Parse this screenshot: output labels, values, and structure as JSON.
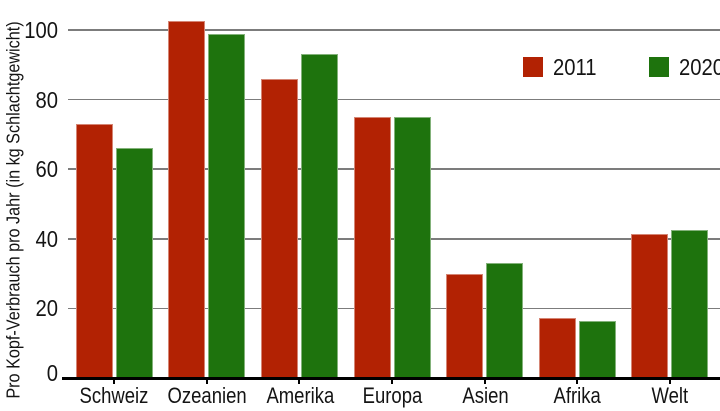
{
  "chart_data": {
    "type": "bar",
    "title": "",
    "xlabel": "",
    "ylabel": "Pro Kopf-Verbrauch pro Jahr (in kg Schlachtgewicht)",
    "categories": [
      "Schweiz",
      "Ozeanien",
      "Amerika",
      "Europa",
      "Asien",
      "Afrika",
      "Welt"
    ],
    "series": [
      {
        "name": "2011",
        "color": "#b22203",
        "values": [
          73,
          102.5,
          86,
          75,
          30,
          17.3,
          41.5
        ]
      },
      {
        "name": "2020",
        "color": "#1e730d",
        "values": [
          66,
          99,
          93,
          75,
          33,
          16.4,
          42.5
        ]
      }
    ],
    "yticks": [
      0,
      20,
      40,
      60,
      80,
      100
    ],
    "ylim": [
      0,
      108.5
    ],
    "grid": "horizontal",
    "legend_position": "top-right-inside"
  },
  "colors": {
    "background": "#ffffff",
    "bar_2011": "#b22203",
    "bar_2020": "#1e730d",
    "gridline": "#7c7c7c",
    "axis_line": "#000000",
    "text": "#141414"
  }
}
